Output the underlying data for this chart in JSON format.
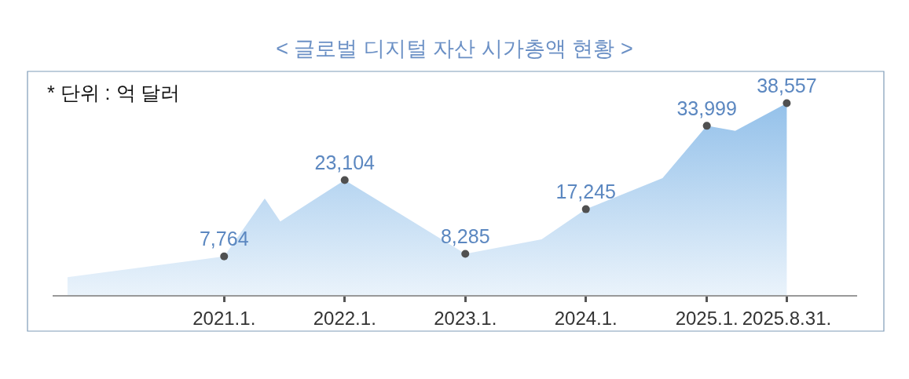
{
  "chart_data": {
    "type": "area",
    "title": "< 글로벌 디지털 자산 시가총액 현황 >",
    "annotations": [
      "* 단위 : 억 달러"
    ],
    "x": [
      "2019-09-15",
      "2021-01",
      "2021-05-04",
      "2021-06-20",
      "2022-01",
      "2023-01",
      "2023-08-20",
      "2024-01",
      "2024-08-20",
      "2025-01",
      "2025-03-28",
      "2025-08-31"
    ],
    "xlim": [
      "2019-08-01",
      "2026-04-01"
    ],
    "xticks": [
      {
        "value": "2021-01",
        "label": "2021.1."
      },
      {
        "value": "2022-01",
        "label": "2022.1."
      },
      {
        "value": "2023-01",
        "label": "2023.1."
      },
      {
        "value": "2024-01",
        "label": "2024.1."
      },
      {
        "value": "2025-01",
        "label": "2025.1."
      },
      {
        "value": "2025-08-31",
        "label": "2025.8.31."
      }
    ],
    "tick_labels": "x",
    "marker": "circle",
    "series": [
      {
        "color": "#94c1ea",
        "values": [
          3600,
          7764,
          19400,
          14800,
          23104,
          8285,
          11200,
          17245,
          23500,
          33999,
          33000,
          38557
        ],
        "value_labels": [
          null,
          "7,764",
          null,
          null,
          "23,104",
          "8,285",
          null,
          "17,245",
          null,
          "33,999",
          null,
          "38,557"
        ]
      }
    ]
  }
}
